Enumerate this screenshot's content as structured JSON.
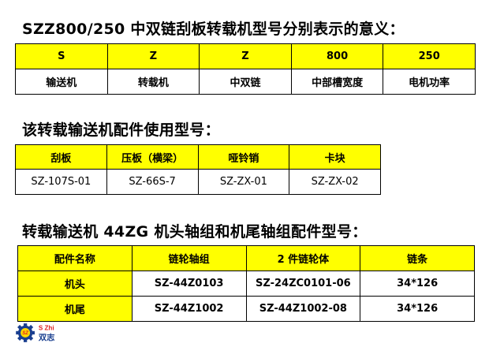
{
  "section1": {
    "title": "SZZ800/250 中双链刮板转载机型号分别表示的意义：",
    "header": [
      "S",
      "Z",
      "Z",
      "800",
      "250"
    ],
    "row": [
      "输送机",
      "转载机",
      "中双链",
      "中部槽宽度",
      "电机功率"
    ]
  },
  "section2": {
    "title": "该转载输送机配件使用型号：",
    "header": [
      "刮板",
      "压板（横梁）",
      "哑铃销",
      "卡块"
    ],
    "row": [
      "SZ-107S-01",
      "SZ-66S-7",
      "SZ-ZX-01",
      "SZ-ZX-02"
    ]
  },
  "section3": {
    "title": "转载输送机 44ZG 机头轴组和机尾轴组配件型号：",
    "header": [
      "配件名称",
      "链轮轴组",
      "2 件链轮体",
      "链条"
    ],
    "rows": [
      [
        "机头",
        "SZ-44Z0103",
        "SZ-24ZC0101-06",
        "34*126"
      ],
      [
        "机尾",
        "SZ-44Z1002",
        "SZ-44Z1002-08",
        "34*126"
      ]
    ]
  },
  "logo": {
    "text_latin": "S Zhi",
    "text_cn": "双志",
    "badge": "SZ",
    "colors": {
      "blue": "#1a3f8f",
      "red": "#e02020"
    }
  },
  "colors": {
    "header_fill": "#ffff00"
  }
}
